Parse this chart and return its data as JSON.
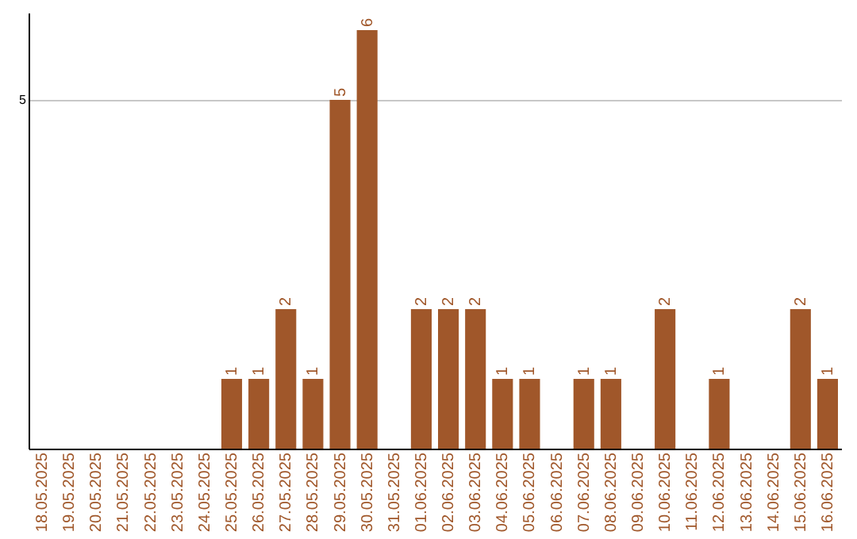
{
  "chart_data": {
    "type": "bar",
    "categories": [
      "18.05.2025",
      "19.05.2025",
      "20.05.2025",
      "21.05.2025",
      "22.05.2025",
      "23.05.2025",
      "24.05.2025",
      "25.05.2025",
      "26.05.2025",
      "27.05.2025",
      "28.05.2025",
      "29.05.2025",
      "30.05.2025",
      "31.05.2025",
      "01.06.2025",
      "02.06.2025",
      "03.06.2025",
      "04.06.2025",
      "05.06.2025",
      "06.06.2025",
      "07.06.2025",
      "08.06.2025",
      "09.06.2025",
      "10.06.2025",
      "11.06.2025",
      "12.06.2025",
      "13.06.2025",
      "14.06.2025",
      "15.06.2025",
      "16.06.2025"
    ],
    "values": [
      0,
      0,
      0,
      0,
      0,
      0,
      0,
      1,
      1,
      2,
      1,
      5,
      6,
      0,
      2,
      2,
      2,
      1,
      1,
      0,
      1,
      1,
      0,
      2,
      0,
      1,
      0,
      0,
      2,
      1
    ],
    "value_labels": [
      null,
      null,
      null,
      null,
      null,
      null,
      null,
      "1",
      "1",
      "2",
      "1",
      "5",
      "6",
      null,
      "2",
      "2",
      "2",
      "1",
      "1",
      null,
      "1",
      "1",
      null,
      "2",
      null,
      "1",
      null,
      null,
      "2",
      "1"
    ],
    "color": "#a0572a",
    "ylim": [
      0,
      6.25
    ],
    "yticks": [
      5
    ],
    "grid": "y"
  }
}
